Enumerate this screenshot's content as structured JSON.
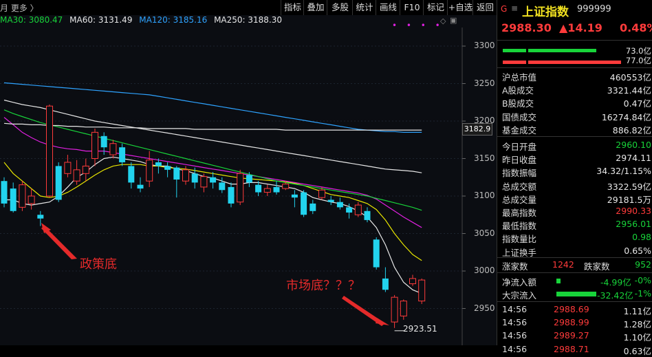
{
  "toolbar": {
    "left_text": "月 更多 〉",
    "buttons": [
      "指标",
      "叠加",
      "多股",
      "统计",
      "画线",
      "F10",
      "标记",
      "+自选",
      "返回"
    ]
  },
  "ma_legend": [
    {
      "label": "MA30: 3080.47",
      "color": "#18d43a"
    },
    {
      "label": "MA60: 3131.49",
      "color": "#e8e8e8"
    },
    {
      "label": "MA120: 3185.16",
      "color": "#2ea3ff"
    },
    {
      "label": "MA250: 3188.30",
      "color": "#e8e8e8"
    }
  ],
  "chart_data": {
    "type": "candlestick",
    "y_ticks": [
      "3300",
      "3250",
      "3200",
      "3150",
      "3100",
      "3050",
      "3000",
      "2950"
    ],
    "current_price_label": "3182.9",
    "low_label": "2923.51",
    "annotations": [
      "政策底",
      "市场底？？？"
    ],
    "candles": [
      {
        "o": 3120,
        "c": 3090,
        "h": 3125,
        "l": 3085
      },
      {
        "o": 3110,
        "c": 3080,
        "h": 3118,
        "l": 3078
      },
      {
        "o": 3085,
        "c": 3115,
        "h": 3120,
        "l": 3080
      },
      {
        "o": 3090,
        "c": 3100,
        "h": 3110,
        "l": 3082
      },
      {
        "o": 3075,
        "c": 3070,
        "h": 3080,
        "l": 3060
      },
      {
        "o": 3100,
        "c": 3220,
        "h": 3222,
        "l": 3098
      },
      {
        "o": 3140,
        "c": 3095,
        "h": 3145,
        "l": 3092
      },
      {
        "o": 3130,
        "c": 3145,
        "h": 3155,
        "l": 3125
      },
      {
        "o": 3120,
        "c": 3135,
        "h": 3148,
        "l": 3115
      },
      {
        "o": 3130,
        "c": 3140,
        "h": 3150,
        "l": 3120
      },
      {
        "o": 3150,
        "c": 3185,
        "h": 3190,
        "l": 3140
      },
      {
        "o": 3180,
        "c": 3165,
        "h": 3185,
        "l": 3155
      },
      {
        "o": 3155,
        "c": 3170,
        "h": 3175,
        "l": 3150
      },
      {
        "o": 3165,
        "c": 3145,
        "h": 3170,
        "l": 3140
      },
      {
        "o": 3140,
        "c": 3118,
        "h": 3145,
        "l": 3110
      },
      {
        "o": 3115,
        "c": 3110,
        "h": 3125,
        "l": 3105
      },
      {
        "o": 3120,
        "c": 3148,
        "h": 3160,
        "l": 3112
      },
      {
        "o": 3145,
        "c": 3140,
        "h": 3150,
        "l": 3130
      },
      {
        "o": 3140,
        "c": 3135,
        "h": 3145,
        "l": 3125
      },
      {
        "o": 3138,
        "c": 3122,
        "h": 3140,
        "l": 3098
      },
      {
        "o": 3120,
        "c": 3135,
        "h": 3140,
        "l": 3115
      },
      {
        "o": 3130,
        "c": 3118,
        "h": 3138,
        "l": 3110
      },
      {
        "o": 3112,
        "c": 3126,
        "h": 3130,
        "l": 3105
      },
      {
        "o": 3125,
        "c": 3118,
        "h": 3132,
        "l": 3110
      },
      {
        "o": 3118,
        "c": 3108,
        "h": 3125,
        "l": 3104
      },
      {
        "o": 3112,
        "c": 3090,
        "h": 3118,
        "l": 3085
      },
      {
        "o": 3092,
        "c": 3130,
        "h": 3135,
        "l": 3088
      },
      {
        "o": 3128,
        "c": 3118,
        "h": 3132,
        "l": 3112
      },
      {
        "o": 3115,
        "c": 3105,
        "h": 3120,
        "l": 3100
      },
      {
        "o": 3105,
        "c": 3110,
        "h": 3115,
        "l": 3100
      },
      {
        "o": 3112,
        "c": 3105,
        "h": 3120,
        "l": 3102
      },
      {
        "o": 3110,
        "c": 3116,
        "h": 3120,
        "l": 3108
      },
      {
        "o": 3102,
        "c": 3098,
        "h": 3108,
        "l": 3085
      },
      {
        "o": 3105,
        "c": 3075,
        "h": 3108,
        "l": 3072
      },
      {
        "o": 3090,
        "c": 3080,
        "h": 3095,
        "l": 3076
      },
      {
        "o": 3098,
        "c": 3108,
        "h": 3112,
        "l": 3095
      },
      {
        "o": 3095,
        "c": 3092,
        "h": 3100,
        "l": 3088
      },
      {
        "o": 3092,
        "c": 3085,
        "h": 3098,
        "l": 3082
      },
      {
        "o": 3085,
        "c": 3078,
        "h": 3090,
        "l": 3070
      },
      {
        "o": 3075,
        "c": 3088,
        "h": 3092,
        "l": 3072
      },
      {
        "o": 3080,
        "c": 3068,
        "h": 3085,
        "l": 3065
      },
      {
        "o": 3042,
        "c": 3005,
        "h": 3045,
        "l": 3002
      },
      {
        "o": 2990,
        "c": 2975,
        "h": 3005,
        "l": 2972
      },
      {
        "o": 2932,
        "c": 2965,
        "h": 2968,
        "l": 2924
      },
      {
        "o": 2940,
        "c": 2960,
        "h": 2962,
        "l": 2935
      },
      {
        "o": 2983,
        "c": 2990,
        "h": 2995,
        "l": 2980
      },
      {
        "o": 2960,
        "c": 2988,
        "h": 2990,
        "l": 2956
      }
    ],
    "lines": [
      {
        "name": "MA5",
        "color": "#e8e8e8",
        "values": [
          3095,
          3095,
          3090,
          3088,
          3090,
          3092,
          3100,
          3112,
          3125,
          3132,
          3142,
          3150,
          3152,
          3150,
          3148,
          3146,
          3142,
          3140,
          3140,
          3136,
          3134,
          3130,
          3126,
          3124,
          3120,
          3116,
          3116,
          3118,
          3118,
          3116,
          3114,
          3112,
          3110,
          3105,
          3098,
          3095,
          3092,
          3090,
          3086,
          3080,
          3072,
          3058,
          3035,
          3005,
          2985,
          2975,
          2970
        ]
      },
      {
        "name": "MA10",
        "color": "#e8e600",
        "values": [
          3145,
          3130,
          3120,
          3110,
          3100,
          3098,
          3100,
          3105,
          3112,
          3120,
          3128,
          3135,
          3140,
          3142,
          3142,
          3142,
          3140,
          3140,
          3138,
          3137,
          3136,
          3134,
          3132,
          3130,
          3128,
          3126,
          3124,
          3123,
          3122,
          3121,
          3120,
          3119,
          3117,
          3114,
          3110,
          3106,
          3102,
          3100,
          3098,
          3094,
          3090,
          3082,
          3068,
          3050,
          3035,
          3022,
          3014
        ]
      },
      {
        "name": "MA20",
        "color": "#e020e0",
        "values": [
          3205,
          3195,
          3185,
          3178,
          3172,
          3168,
          3165,
          3163,
          3162,
          3160,
          3160,
          3160,
          3158,
          3156,
          3154,
          3152,
          3150,
          3148,
          3146,
          3144,
          3142,
          3140,
          3138,
          3136,
          3134,
          3132,
          3130,
          3128,
          3126,
          3124,
          3122,
          3120,
          3118,
          3116,
          3114,
          3112,
          3110,
          3108,
          3106,
          3104,
          3101,
          3096,
          3088,
          3080,
          3072,
          3065,
          3058
        ]
      },
      {
        "name": "MA30",
        "color": "#18d43a",
        "values": [
          3215,
          3210,
          3206,
          3202,
          3198,
          3195,
          3192,
          3189,
          3186,
          3183,
          3180,
          3177,
          3174,
          3171,
          3168,
          3165,
          3162,
          3159,
          3156,
          3153,
          3150,
          3147,
          3144,
          3141,
          3138,
          3135,
          3132,
          3129,
          3126,
          3123,
          3120,
          3118,
          3116,
          3114,
          3112,
          3110,
          3108,
          3106,
          3104,
          3102,
          3100,
          3097,
          3094,
          3091,
          3088,
          3085,
          3081
        ]
      },
      {
        "name": "MA60",
        "color": "#e8e8e8",
        "values": [
          3228,
          3225,
          3222,
          3220,
          3218,
          3215,
          3212,
          3209,
          3206,
          3203,
          3200,
          3198,
          3196,
          3194,
          3192,
          3190,
          3188,
          3186,
          3184,
          3182,
          3180,
          3178,
          3176,
          3174,
          3172,
          3170,
          3168,
          3166,
          3164,
          3162,
          3160,
          3158,
          3156,
          3154,
          3152,
          3150,
          3148,
          3146,
          3144,
          3142,
          3140,
          3138,
          3136,
          3135,
          3134,
          3133,
          3131
        ]
      },
      {
        "name": "MA120",
        "color": "#2ea3ff",
        "values": [
          3251,
          3250,
          3249,
          3248,
          3247,
          3246,
          3245,
          3244,
          3243,
          3242,
          3241,
          3240,
          3239,
          3238,
          3237,
          3236,
          3235,
          3233,
          3231,
          3229,
          3227,
          3225,
          3223,
          3221,
          3219,
          3217,
          3215,
          3213,
          3211,
          3209,
          3207,
          3205,
          3203,
          3201,
          3199,
          3197,
          3195,
          3193,
          3191,
          3189,
          3188,
          3187,
          3186,
          3186,
          3185,
          3185,
          3185
        ]
      },
      {
        "name": "MA250",
        "color": "#e8e8e8",
        "values": [
          3197,
          3196,
          3196,
          3195,
          3195,
          3194,
          3194,
          3193,
          3193,
          3192,
          3192,
          3192,
          3191,
          3191,
          3191,
          3191,
          3190,
          3190,
          3190,
          3190,
          3190,
          3189,
          3189,
          3189,
          3189,
          3189,
          3189,
          3189,
          3189,
          3189,
          3189,
          3188,
          3188,
          3188,
          3188,
          3188,
          3188,
          3188,
          3188,
          3188,
          3188,
          3188,
          3188,
          3188,
          3188,
          3188,
          3188
        ]
      }
    ]
  },
  "side": {
    "g_mark": "G",
    "eq_mark": "≡",
    "name": "上证指数",
    "code": "999999",
    "price": "2988.30",
    "change": "▲14.19",
    "pct": "0.48%",
    "bar1_label": "73.0亿",
    "bar2_label": "77.0亿",
    "stats": [
      {
        "label": "沪总市值",
        "value": "460553亿",
        "color": "white"
      },
      {
        "label": "A股成交",
        "value": "3321.44亿",
        "color": "white"
      },
      {
        "label": "B股成交",
        "value": "0.47亿",
        "color": "white"
      },
      {
        "label": "国债成交",
        "value": "16274.84亿",
        "color": "white"
      },
      {
        "label": "基金成交",
        "value": "886.82亿",
        "color": "white"
      }
    ],
    "stats2": [
      {
        "label": "今日开盘",
        "value": "2960.10",
        "color": "green"
      },
      {
        "label": "昨日收盘",
        "value": "2974.11",
        "color": "white"
      },
      {
        "label": "指数振幅",
        "value": "34.32/1.15%",
        "color": "white"
      },
      {
        "label": "总成交额",
        "value": "3322.59亿",
        "color": "white"
      },
      {
        "label": "总成交量",
        "value": "29181.5万",
        "color": "white"
      },
      {
        "label": "最高指数",
        "value": "2990.33",
        "color": "red"
      },
      {
        "label": "最低指数",
        "value": "2956.01",
        "color": "green"
      },
      {
        "label": "指数量比",
        "value": "0.98",
        "color": "green"
      },
      {
        "label": "上证换手",
        "value": "0.65%",
        "color": "white"
      }
    ],
    "rise_label": "涨家数",
    "rise_value": "1242",
    "fall_label": "跌家数",
    "fall_value": "952",
    "flow": [
      {
        "label": "净流入额",
        "value": "-4.99亿",
        "pct": "-0%",
        "bar_fraction": 0.08
      },
      {
        "label": "大宗流入",
        "value": "-32.42亿",
        "pct": "-1%",
        "bar_fraction": 0.72
      }
    ],
    "ticks": [
      {
        "time": "14:56",
        "price": "2988.69",
        "vol": "1.11亿"
      },
      {
        "time": "14:56",
        "price": "2988.99",
        "vol": "1.28亿"
      },
      {
        "time": "14:56",
        "price": "2989.27",
        "vol": "1.10亿"
      },
      {
        "time": "14:56",
        "price": "2988.71",
        "vol": "0.63亿"
      }
    ]
  }
}
